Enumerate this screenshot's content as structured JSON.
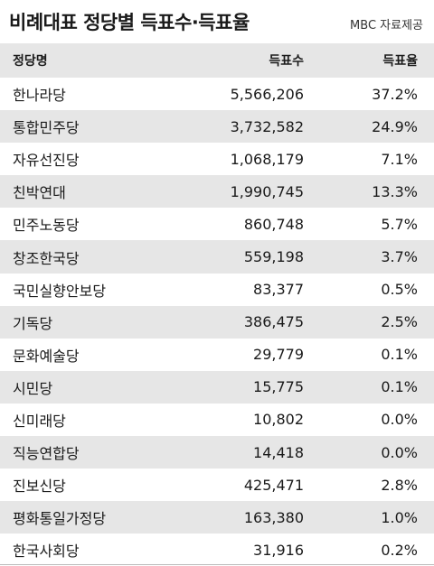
{
  "header": {
    "title": "비례대표 정당별 득표수·득표율",
    "source": "MBC 자료제공"
  },
  "table": {
    "columns": [
      "정당명",
      "득표수",
      "득표율"
    ],
    "rows": [
      {
        "party": "한나라당",
        "votes": "5,566,206",
        "rate": "37.2%"
      },
      {
        "party": "통합민주당",
        "votes": "3,732,582",
        "rate": "24.9%"
      },
      {
        "party": "자유선진당",
        "votes": "1,068,179",
        "rate": "7.1%"
      },
      {
        "party": "친박연대",
        "votes": "1,990,745",
        "rate": "13.3%"
      },
      {
        "party": "민주노동당",
        "votes": "860,748",
        "rate": "5.7%"
      },
      {
        "party": "창조한국당",
        "votes": "559,198",
        "rate": "3.7%"
      },
      {
        "party": "국민실향안보당",
        "votes": "83,377",
        "rate": "0.5%"
      },
      {
        "party": "기독당",
        "votes": "386,475",
        "rate": "2.5%"
      },
      {
        "party": "문화예술당",
        "votes": "29,779",
        "rate": "0.1%"
      },
      {
        "party": "시민당",
        "votes": "15,775",
        "rate": "0.1%"
      },
      {
        "party": "신미래당",
        "votes": "10,802",
        "rate": "0.0%"
      },
      {
        "party": "직능연합당",
        "votes": "14,418",
        "rate": "0.0%"
      },
      {
        "party": "진보신당",
        "votes": "425,471",
        "rate": "2.8%"
      },
      {
        "party": "평화통일가정당",
        "votes": "163,380",
        "rate": "1.0%"
      },
      {
        "party": "한국사회당",
        "votes": "31,916",
        "rate": "0.2%"
      }
    ]
  }
}
